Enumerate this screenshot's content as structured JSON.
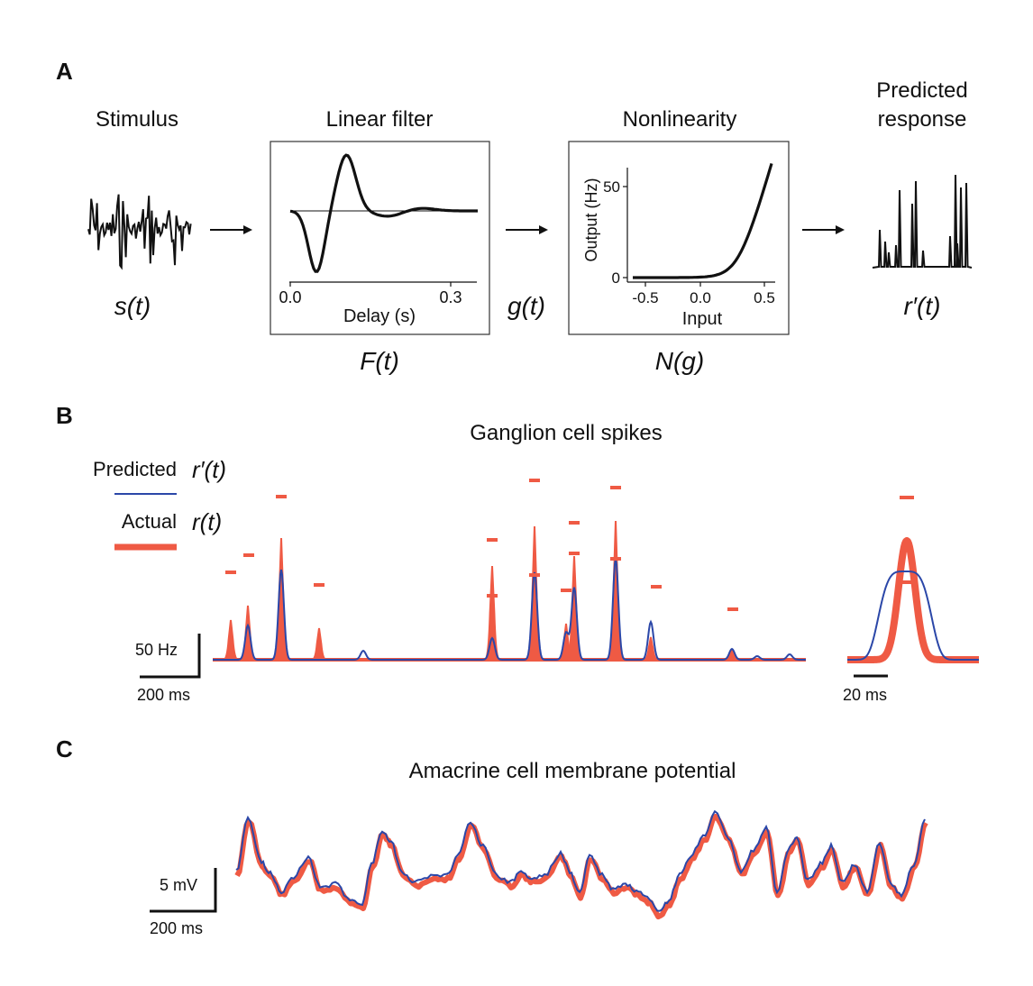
{
  "panels": {
    "A": {
      "label": "A",
      "stimulus_title": "Stimulus",
      "filter_title": "Linear filter",
      "nonlin_title": "Nonlinearity",
      "response_title_1": "Predicted",
      "response_title_2": "response",
      "s_label": "s(t)",
      "g_label": "g(t)",
      "r_label": "r′(t)",
      "F_label": "F(t)",
      "N_label": "N(g)",
      "filter_plot": {
        "xlabel": "Delay (s)",
        "xticks": [
          "0.0",
          "0.3"
        ]
      },
      "nonlin_plot": {
        "xlabel": "Input",
        "ylabel": "Output (Hz)",
        "xticks": [
          "-0.5",
          "0.0",
          "0.5"
        ],
        "yticks": [
          "0",
          "50"
        ]
      }
    },
    "B": {
      "label": "B",
      "title": "Ganglion cell spikes",
      "legend_predicted": "Predicted",
      "legend_predicted_sym": "r′(t)",
      "legend_actual": "Actual",
      "legend_actual_sym": "r(t)",
      "scale_y": "50 Hz",
      "scale_x": "200 ms",
      "inset_scale_x": "20 ms"
    },
    "C": {
      "label": "C",
      "title": "Amacrine cell membrane potential",
      "scale_y": "5 mV",
      "scale_x": "200 ms"
    }
  },
  "colors": {
    "predicted": "#2b47a8",
    "actual": "#ef5a44",
    "ink": "#111111"
  }
}
